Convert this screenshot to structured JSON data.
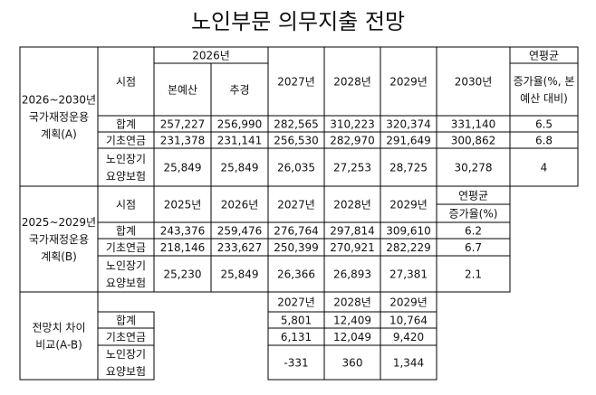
{
  "title": "노인부문 의무지출 전망",
  "plan_a": {
    "label": [
      "2026~2030년",
      "국가재정운용",
      "계획(A)"
    ],
    "period_label": "시점",
    "base_year": "2026년",
    "sub_columns": [
      "본예산",
      "추경"
    ],
    "years": [
      "2027년",
      "2028년",
      "2029년",
      "2030년"
    ],
    "avg_label": "연평균",
    "avg_sub": [
      "증가율(%, 본",
      "예산 대비)"
    ],
    "rows": [
      {
        "label": "합계",
        "values": [
          "257,227",
          "256,990",
          "282,565",
          "310,223",
          "320,374",
          "331,140"
        ],
        "avg": "6.5"
      },
      {
        "label": "기초연금",
        "values": [
          "231,378",
          "231,141",
          "256,530",
          "282,970",
          "291,649",
          "300,862"
        ],
        "avg": "6.8"
      },
      {
        "label": [
          "노인장기",
          "요양보험"
        ],
        "values": [
          "25,849",
          "25,849",
          "26,035",
          "27,253",
          "28,725",
          "30,278"
        ],
        "avg": "4"
      }
    ]
  },
  "plan_b": {
    "label": [
      "2025~2029년",
      "국가재정운용",
      "계획(B)"
    ],
    "period_label": "시점",
    "years": [
      "2025년",
      "2026년",
      "2027년",
      "2028년",
      "2029년"
    ],
    "avg_label": "연평균",
    "avg_sub": "증가율(%)",
    "rows": [
      {
        "label": "합계",
        "values": [
          "243,376",
          "259,476",
          "276,764",
          "297,814",
          "309,610"
        ],
        "avg": "6.2"
      },
      {
        "label": "기초연금",
        "values": [
          "218,146",
          "233,627",
          "250,399",
          "270,921",
          "282,229"
        ],
        "avg": "6.7"
      },
      {
        "label": [
          "노인장기",
          "요양보험"
        ],
        "values": [
          "25,230",
          "25,849",
          "26,366",
          "26,893",
          "27,381"
        ],
        "avg": "2.1"
      }
    ]
  },
  "difference": {
    "label": [
      "전망치 차이",
      "비교(A-B)"
    ],
    "years": [
      "2027년",
      "2028년",
      "2029년"
    ],
    "rows": [
      {
        "label": "합계",
        "values": [
          "5,801",
          "12,409",
          "10,764"
        ]
      },
      {
        "label": "기초연금",
        "values": [
          "6,131",
          "12,049",
          "9,420"
        ]
      },
      {
        "label": [
          "노인장기",
          "요양보험"
        ],
        "values": [
          "-331",
          "360",
          "1,344"
        ]
      }
    ]
  }
}
